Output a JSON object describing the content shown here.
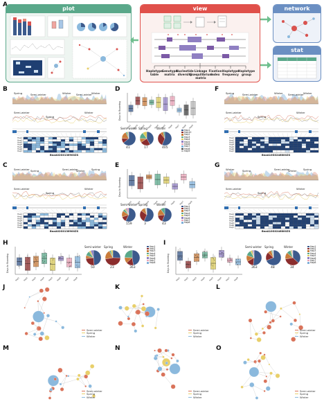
{
  "panel_A": {
    "letter": "A",
    "plot_title": "plot",
    "view_title": "view",
    "network_title": "network",
    "stat_title": "stat",
    "view_outputs": [
      "Haplotype table",
      "Genotype matrix",
      "Nucleotide diversity",
      "Linkage disequilibrium matrix",
      "Fixation index",
      "Haplotype frequency",
      "Haplotype group"
    ],
    "colors": {
      "plot": "#5aa88a",
      "view": "#e0504a",
      "network": "#6b8fc2",
      "stat": "#6b8fc2",
      "arrow": "#6fbf8e"
    }
  },
  "panels_left_right": [
    {
      "letter": "B",
      "gene": "BnaA02G0136900ZS",
      "seasons_top": [
        "Spring",
        "Semi-winter",
        "Winter",
        "Semi-winter",
        "Winter",
        "Spring"
      ],
      "seasons_mid": [
        "Semi-winter",
        "Spring",
        "Winter"
      ]
    },
    {
      "letter": "C",
      "gene": "BnaA02G0136900ZS",
      "seasons_top": [
        "Semi-winter",
        "Spring",
        "Semi-winter",
        "Winter",
        "Spring",
        "Winter"
      ],
      "seasons_mid": [
        "Semi-winter",
        "Spring",
        "Winter"
      ]
    },
    {
      "letter": "F",
      "gene": "BnaA10G0246800ZS",
      "seasons_top": [
        "Spring",
        "Semi-winter",
        "Winter",
        "Semi-winter",
        "Winter",
        "Spring"
      ],
      "seasons_mid": [
        "Semi-winter",
        "Spring",
        "Winter"
      ]
    },
    {
      "letter": "G",
      "gene": "BnaA10G0246800ZS",
      "seasons_top": [
        "Winter",
        "Spring",
        "Semi-winter",
        "Winter",
        "Spring",
        "Winter"
      ],
      "seasons_mid": [
        "Semi-winter",
        "Spring",
        "Winter"
      ]
    }
  ],
  "panel_D": {
    "letter": "D",
    "ylabel": "Days to flowering",
    "pies": [
      {
        "name": "Semi-winter",
        "n": "41"
      },
      {
        "name": "Spring",
        "n": "17"
      },
      {
        "name": "Winter",
        "n": "405"
      }
    ]
  },
  "panel_E": {
    "letter": "E",
    "ylabel": "Days to flowering",
    "pies": [
      {
        "name": "Semi-winter",
        "n": "159"
      },
      {
        "name": "Spring",
        "n": "3"
      },
      {
        "name": "Winter",
        "n": "43"
      }
    ]
  },
  "panel_H": {
    "letter": "H",
    "ylabel": "Days to flowering",
    "pies": [
      {
        "name": "Semi-winter",
        "n": "50"
      },
      {
        "name": "Spring",
        "n": "23"
      },
      {
        "name": "Winter",
        "n": "363"
      }
    ]
  },
  "panel_I": {
    "letter": "I",
    "ylabel": "Days to flowering",
    "pies": [
      {
        "name": "Semi-winter",
        "n": "363"
      },
      {
        "name": "Spring",
        "n": "48"
      },
      {
        "name": "Winter",
        "n": "34"
      }
    ]
  },
  "hap_legend": [
    "Hap1",
    "Hap2",
    "Hap3",
    "Hap4",
    "Hap5",
    "Hap6",
    "Hap7",
    "Hap8"
  ],
  "hap_legend_D": [
    "Hap1",
    "Hap10",
    "Hap2",
    "Hap3",
    "Hap4",
    "Hap5",
    "Hap6",
    "Hap7",
    "Hap8",
    "Hap9"
  ],
  "network_panels": [
    {
      "letter": "J"
    },
    {
      "letter": "K"
    },
    {
      "letter": "L"
    },
    {
      "letter": "M"
    },
    {
      "letter": "N"
    },
    {
      "letter": "O"
    }
  ],
  "network_legend": [
    "Semi-winter",
    "Spring",
    "Winter"
  ],
  "season_colors": {
    "Semi-winter": "#d9735a",
    "Spring": "#e8cf6a",
    "Winter": "#8bb9dd"
  }
}
